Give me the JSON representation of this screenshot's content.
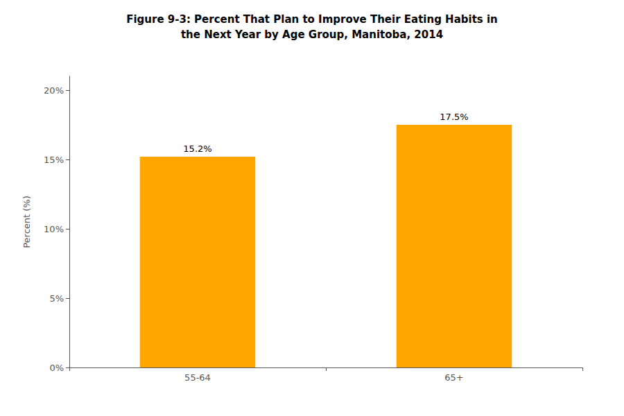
{
  "chart_data": {
    "type": "bar",
    "title": "Figure 9-3: Percent That Plan to Improve Their Eating Habits in\nthe Next Year by Age Group, Manitoba, 2014",
    "ylabel": "Percent (%)",
    "categories": [
      "55-64",
      "65+"
    ],
    "values": [
      15.2,
      17.5
    ],
    "value_labels": [
      "15.2%",
      "17.5%"
    ],
    "data_labels": true,
    "color": "#FFA500",
    "ylim": [
      0,
      21
    ],
    "yticks": [
      {
        "value": 0,
        "label": "0%"
      },
      {
        "value": 5,
        "label": "5%"
      },
      {
        "value": 10,
        "label": "10%"
      },
      {
        "value": 15,
        "label": "15%"
      },
      {
        "value": 20,
        "label": "20%"
      }
    ],
    "grid": false
  }
}
